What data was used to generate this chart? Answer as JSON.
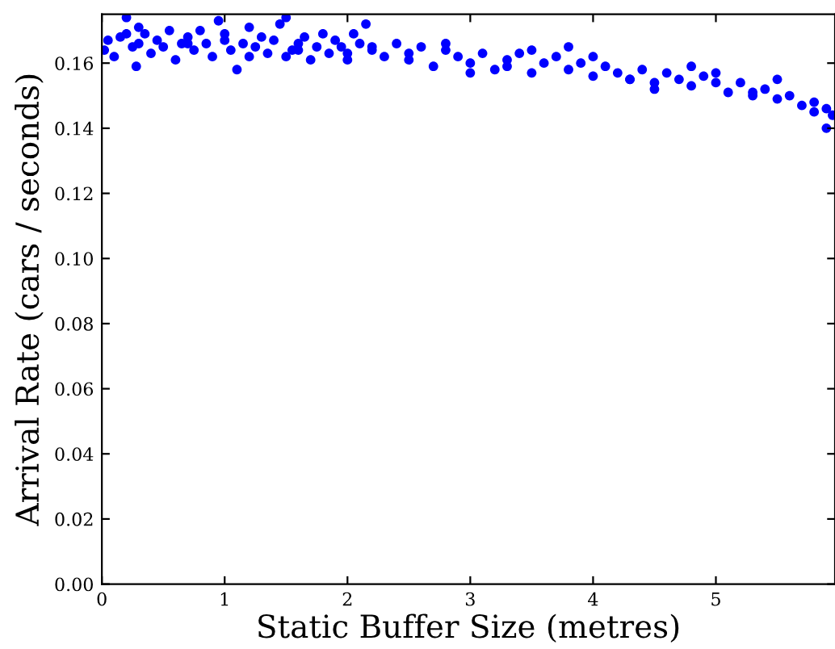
{
  "chart_data": {
    "type": "scatter",
    "xlabel": "Static Buffer Size (metres)",
    "ylabel": "Arrival Rate (cars / seconds)",
    "xlim": [
      0,
      5.97
    ],
    "ylim": [
      0,
      0.175
    ],
    "xticks": [
      0,
      1,
      2,
      3,
      4,
      5
    ],
    "yticks": [
      {
        "value": 0,
        "label": "0.00"
      },
      {
        "value": 0.02,
        "label": "0.02"
      },
      {
        "value": 0.04,
        "label": "0.04"
      },
      {
        "value": 0.06,
        "label": "0.06"
      },
      {
        "value": 0.08,
        "label": "0.08"
      },
      {
        "value": 0.1,
        "label": "0.10"
      },
      {
        "value": 0.12,
        "label": "0.12"
      },
      {
        "value": 0.14,
        "label": "0.14"
      },
      {
        "value": 0.16,
        "label": "0.16"
      }
    ],
    "marker": "circle",
    "grid": false,
    "legend": false,
    "series": [
      {
        "color": "#0000ff",
        "x": [
          0.02,
          0.05,
          0.1,
          0.15,
          0.2,
          0.25,
          0.28,
          0.3,
          0.35,
          0.4,
          0.45,
          0.5,
          0.55,
          0.6,
          0.65,
          0.7,
          0.75,
          0.8,
          0.85,
          0.9,
          0.95,
          1.0,
          1.05,
          1.1,
          1.15,
          1.2,
          1.25,
          1.3,
          1.35,
          1.4,
          1.45,
          1.5,
          1.55,
          1.6,
          1.65,
          1.7,
          1.75,
          1.8,
          1.85,
          1.9,
          1.95,
          2.0,
          2.05,
          2.1,
          2.15,
          2.2,
          2.3,
          2.4,
          2.5,
          2.6,
          2.7,
          2.8,
          2.9,
          3.0,
          3.1,
          3.2,
          3.3,
          3.4,
          3.5,
          3.6,
          3.7,
          3.8,
          3.9,
          4.0,
          4.1,
          4.2,
          4.3,
          4.4,
          4.5,
          4.6,
          4.7,
          4.8,
          4.9,
          5.0,
          5.1,
          5.2,
          5.3,
          5.4,
          5.5,
          5.6,
          5.7,
          5.8,
          5.9,
          5.95,
          0.3,
          0.7,
          1.2,
          1.6,
          2.0,
          2.5,
          3.0,
          3.5,
          4.0,
          4.5,
          5.0,
          5.5,
          0.2,
          1.0,
          1.5,
          2.2,
          2.8,
          3.3,
          3.8,
          4.3,
          4.8,
          5.3,
          5.8,
          5.9
        ],
        "values": [
          0.164,
          0.167,
          0.162,
          0.168,
          0.174,
          0.165,
          0.159,
          0.166,
          0.169,
          0.163,
          0.167,
          0.165,
          0.17,
          0.161,
          0.166,
          0.168,
          0.164,
          0.17,
          0.166,
          0.162,
          0.173,
          0.167,
          0.164,
          0.158,
          0.166,
          0.171,
          0.165,
          0.168,
          0.163,
          0.167,
          0.172,
          0.174,
          0.164,
          0.166,
          0.168,
          0.161,
          0.165,
          0.169,
          0.163,
          0.167,
          0.165,
          0.163,
          0.169,
          0.166,
          0.172,
          0.164,
          0.162,
          0.166,
          0.161,
          0.165,
          0.159,
          0.164,
          0.162,
          0.16,
          0.163,
          0.158,
          0.161,
          0.163,
          0.157,
          0.16,
          0.162,
          0.158,
          0.16,
          0.156,
          0.159,
          0.157,
          0.155,
          0.158,
          0.154,
          0.157,
          0.155,
          0.153,
          0.156,
          0.154,
          0.151,
          0.154,
          0.15,
          0.152,
          0.149,
          0.15,
          0.147,
          0.148,
          0.146,
          0.144,
          0.171,
          0.166,
          0.162,
          0.164,
          0.161,
          0.163,
          0.157,
          0.164,
          0.162,
          0.152,
          0.157,
          0.155,
          0.169,
          0.169,
          0.162,
          0.165,
          0.166,
          0.159,
          0.165,
          0.155,
          0.159,
          0.151,
          0.145,
          0.14
        ]
      }
    ]
  }
}
